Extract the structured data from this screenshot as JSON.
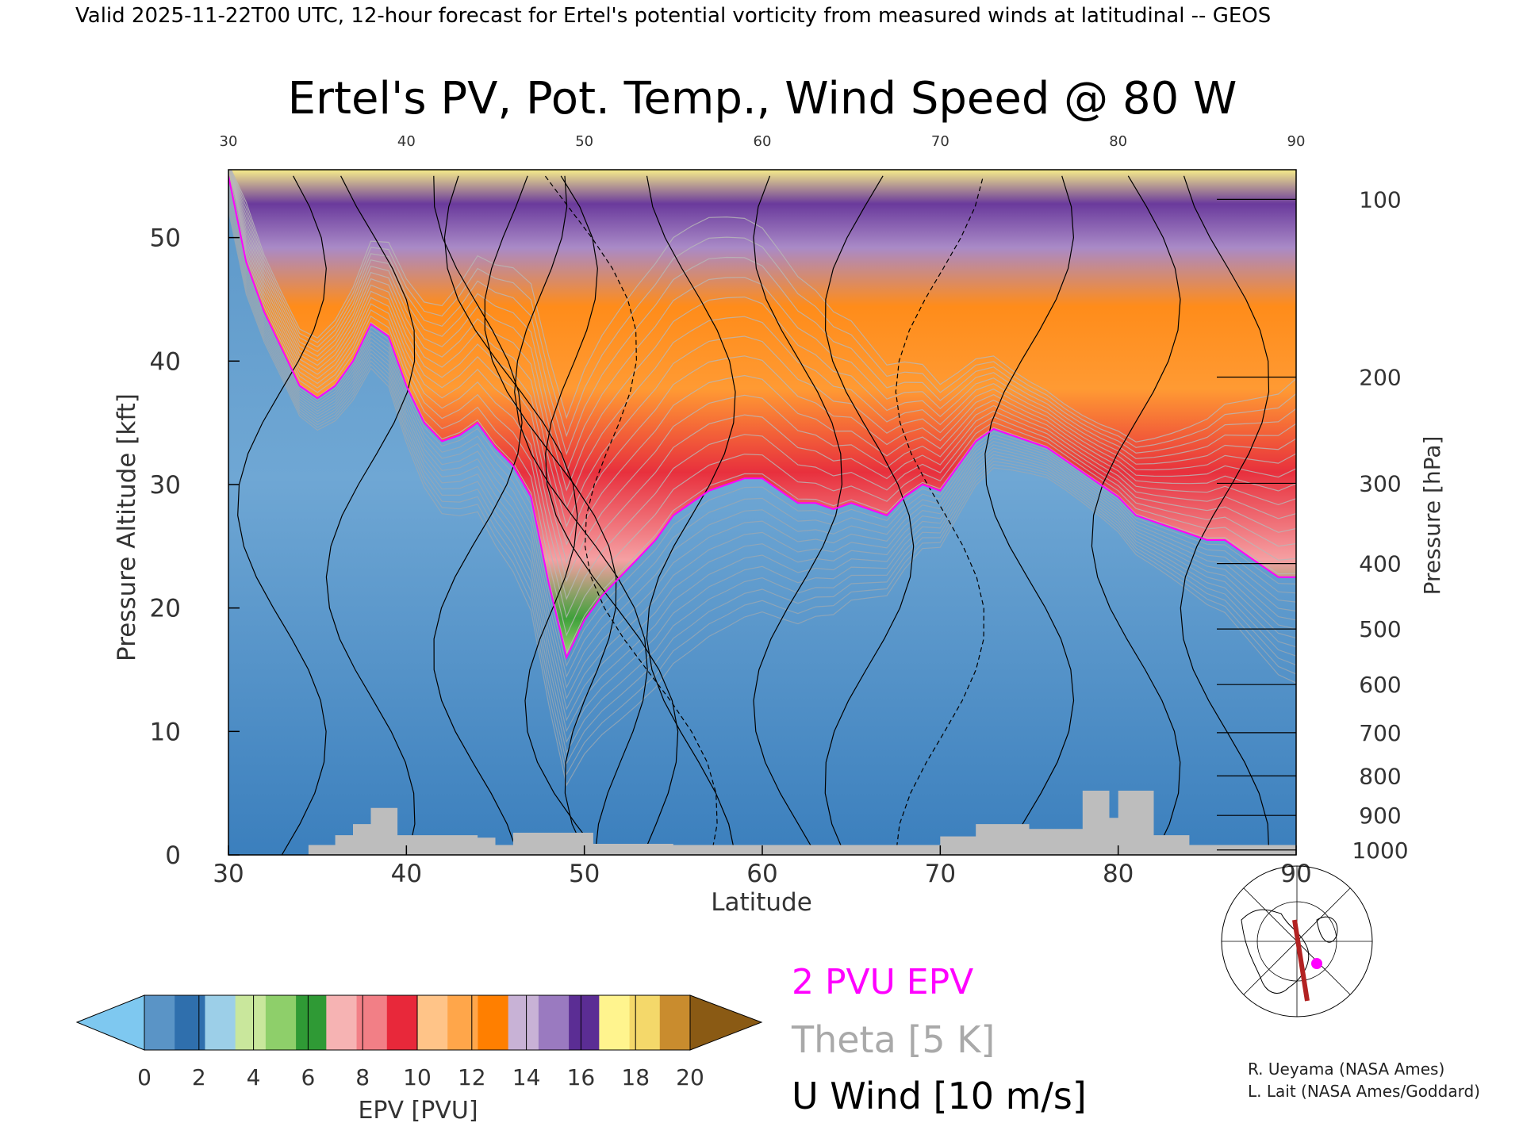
{
  "header": {
    "valid_line": "Valid 2025-11-22T00 UTC, 12-hour forecast for Ertel's potential vorticity from measured winds at latitudinal -- GEOS"
  },
  "chart_data": {
    "type": "heatmap",
    "title": "Ertel's PV, Pot. Temp., Wind Speed @ 80 W",
    "xlabel": "Latitude",
    "ylabel_left": "Pressure Altitude [kft]",
    "ylabel_right": "Pressure [hPa]",
    "xlim": [
      30,
      90
    ],
    "ylim": [
      0,
      55.5
    ],
    "x_ticks": [
      "30",
      "40",
      "50",
      "60",
      "70",
      "80",
      "90"
    ],
    "y_ticks_left": [
      "0",
      "10",
      "20",
      "30",
      "40",
      "50"
    ],
    "pressure_ticks": [
      {
        "label": "100",
        "kft": 53.1
      },
      {
        "label": "200",
        "kft": 38.7
      },
      {
        "label": "300",
        "kft": 30.1
      },
      {
        "label": "400",
        "kft": 23.6
      },
      {
        "label": "500",
        "kft": 18.3
      },
      {
        "label": "600",
        "kft": 13.8
      },
      {
        "label": "700",
        "kft": 9.9
      },
      {
        "label": "800",
        "kft": 6.4
      },
      {
        "label": "900",
        "kft": 3.2
      },
      {
        "label": "1000",
        "kft": 0.4
      }
    ],
    "pv_2pvu_kft": [
      [
        30,
        55
      ],
      [
        31,
        48
      ],
      [
        32,
        44
      ],
      [
        33,
        41
      ],
      [
        34,
        38
      ],
      [
        35,
        37
      ],
      [
        36,
        38
      ],
      [
        37,
        40
      ],
      [
        38,
        43
      ],
      [
        39,
        42
      ],
      [
        40,
        38
      ],
      [
        41,
        35
      ],
      [
        42,
        33.5
      ],
      [
        43,
        34
      ],
      [
        44,
        35
      ],
      [
        45,
        33
      ],
      [
        46,
        31.5
      ],
      [
        47,
        29
      ],
      [
        48,
        22
      ],
      [
        49,
        16
      ],
      [
        50,
        19
      ],
      [
        51,
        21
      ],
      [
        52,
        22.5
      ],
      [
        53,
        24
      ],
      [
        54,
        25.5
      ],
      [
        55,
        27.5
      ],
      [
        56,
        28.5
      ],
      [
        57,
        29.5
      ],
      [
        58,
        30
      ],
      [
        59,
        30.5
      ],
      [
        60,
        30.5
      ],
      [
        61,
        29.5
      ],
      [
        62,
        28.5
      ],
      [
        63,
        28.5
      ],
      [
        64,
        28
      ],
      [
        65,
        28.5
      ],
      [
        66,
        28
      ],
      [
        67,
        27.5
      ],
      [
        68,
        29
      ],
      [
        69,
        30
      ],
      [
        70,
        29.5
      ],
      [
        71,
        31.5
      ],
      [
        72,
        33.5
      ],
      [
        73,
        34.5
      ],
      [
        74,
        34
      ],
      [
        75,
        33.5
      ],
      [
        76,
        33
      ],
      [
        77,
        32
      ],
      [
        78,
        31
      ],
      [
        79,
        30
      ],
      [
        80,
        29
      ],
      [
        81,
        27.5
      ],
      [
        82,
        27
      ],
      [
        83,
        26.5
      ],
      [
        84,
        26
      ],
      [
        85,
        25.5
      ],
      [
        86,
        25.5
      ],
      [
        87,
        24.5
      ],
      [
        88,
        23.5
      ],
      [
        89,
        22.5
      ],
      [
        90,
        22.5
      ]
    ],
    "colorbar": {
      "label": "EPV [PVU]",
      "ticks": [
        "0",
        "2",
        "4",
        "6",
        "8",
        "10",
        "12",
        "14",
        "16",
        "18",
        "20"
      ],
      "colors": [
        "#5a94c6",
        "#2f6fad",
        "#9ccfe8",
        "#c9e79c",
        "#8ecf6a",
        "#2f9a35",
        "#f6b3b3",
        "#f27f86",
        "#e8283a",
        "#ffc488",
        "#ffa64a",
        "#ff7f00",
        "#c8b2d6",
        "#9a7ac0",
        "#5b2d94",
        "#fff48e",
        "#f4d86a",
        "#c98c2e"
      ],
      "under_color": "#7ec8f0",
      "over_color": "#8a5a14"
    },
    "legend": [
      {
        "label": "2 PVU EPV",
        "color": "#ff00ff"
      },
      {
        "label": "Theta [5 K]",
        "color": "#a9a9a9"
      },
      {
        "label": "U Wind [10 m/s]",
        "color": "#000000"
      }
    ]
  },
  "credits": {
    "line1": "R. Ueyama (NASA Ames)",
    "line2": "L. Lait (NASA Ames/Goddard)"
  },
  "map": {
    "section_color": "#b22222",
    "marker_color": "#ff00ff"
  }
}
